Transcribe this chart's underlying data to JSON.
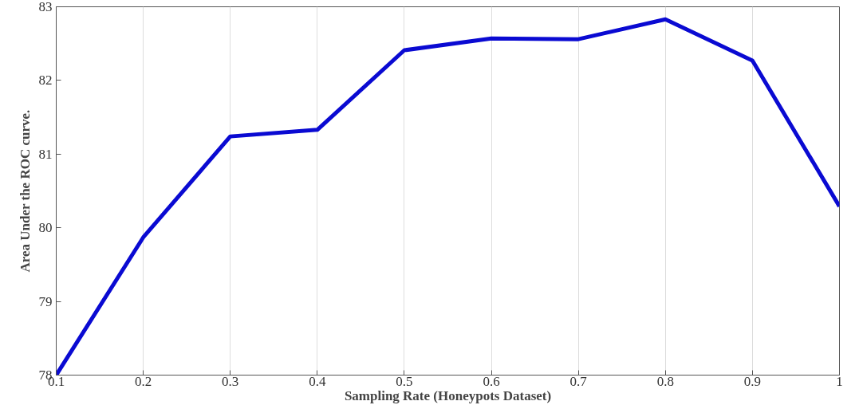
{
  "chart_data": {
    "type": "line",
    "xlabel": "Sampling Rate (Honeypots Dataset)",
    "ylabel": "Area Under the ROC curve.",
    "x": [
      0.1,
      0.2,
      0.3,
      0.4,
      0.5,
      0.6,
      0.7,
      0.8,
      0.9,
      1.0
    ],
    "series": [
      {
        "color": "#0a0ad2",
        "values": [
          78.0,
          79.87,
          81.24,
          81.33,
          82.41,
          82.57,
          82.56,
          82.83,
          82.27,
          80.29
        ]
      }
    ],
    "xlim": [
      0.1,
      1.0
    ],
    "xticks": [
      0.1,
      0.2,
      0.3,
      0.4,
      0.5,
      0.6,
      0.7,
      0.8,
      0.9,
      1
    ],
    "ylim": [
      78,
      83
    ],
    "yticks": [
      78,
      79,
      80,
      81,
      82,
      83
    ],
    "grid": "x",
    "line_style": "solid",
    "marker": "none"
  }
}
